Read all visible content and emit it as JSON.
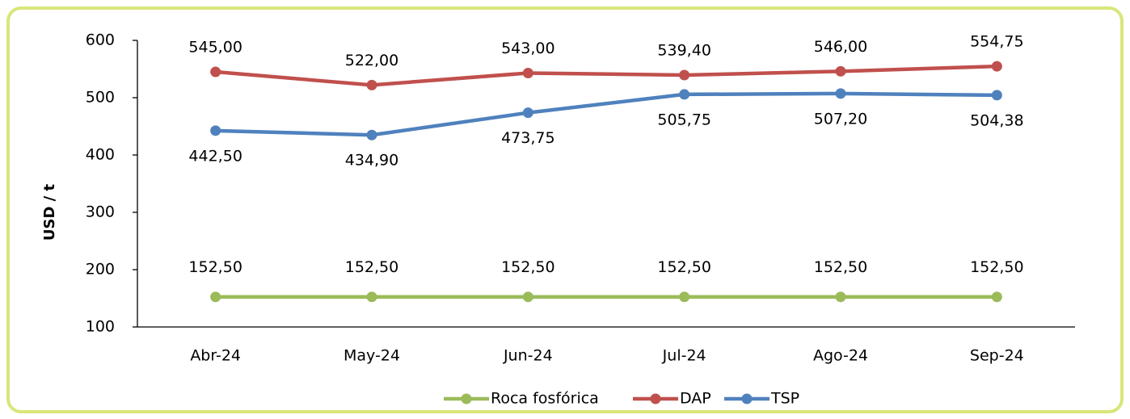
{
  "chart_data": {
    "type": "line",
    "y_label": "USD / t",
    "categories": [
      "Abr-24",
      "May-24",
      "Jun-24",
      "Jul-24",
      "Ago-24",
      "Sep-24"
    ],
    "series": [
      {
        "name": "Roca fosfórica",
        "color": "#9bbb59",
        "values": [
          152.5,
          152.5,
          152.5,
          152.5,
          152.5,
          152.5
        ],
        "value_labels": [
          "152,50",
          "152,50",
          "152,50",
          "152,50",
          "152,50",
          "152,50"
        ]
      },
      {
        "name": "DAP",
        "color": "#c0504d",
        "values": [
          545,
          522,
          543,
          539.4,
          546,
          554.75
        ],
        "value_labels": [
          "545,00",
          "522,00",
          "543,00",
          "539,40",
          "546,00",
          "554,75"
        ]
      },
      {
        "name": "TSP",
        "color": "#4f81bd",
        "values": [
          442.5,
          434.9,
          473.75,
          505.75,
          507.2,
          504.38
        ],
        "value_labels": [
          "442,50",
          "434,90",
          "473,75",
          "505,75",
          "507,20",
          "504,38"
        ]
      }
    ],
    "ylim": [
      100,
      600
    ],
    "yticks": [
      100,
      200,
      300,
      400,
      500,
      600
    ],
    "grid": false,
    "legend": "bottom"
  }
}
